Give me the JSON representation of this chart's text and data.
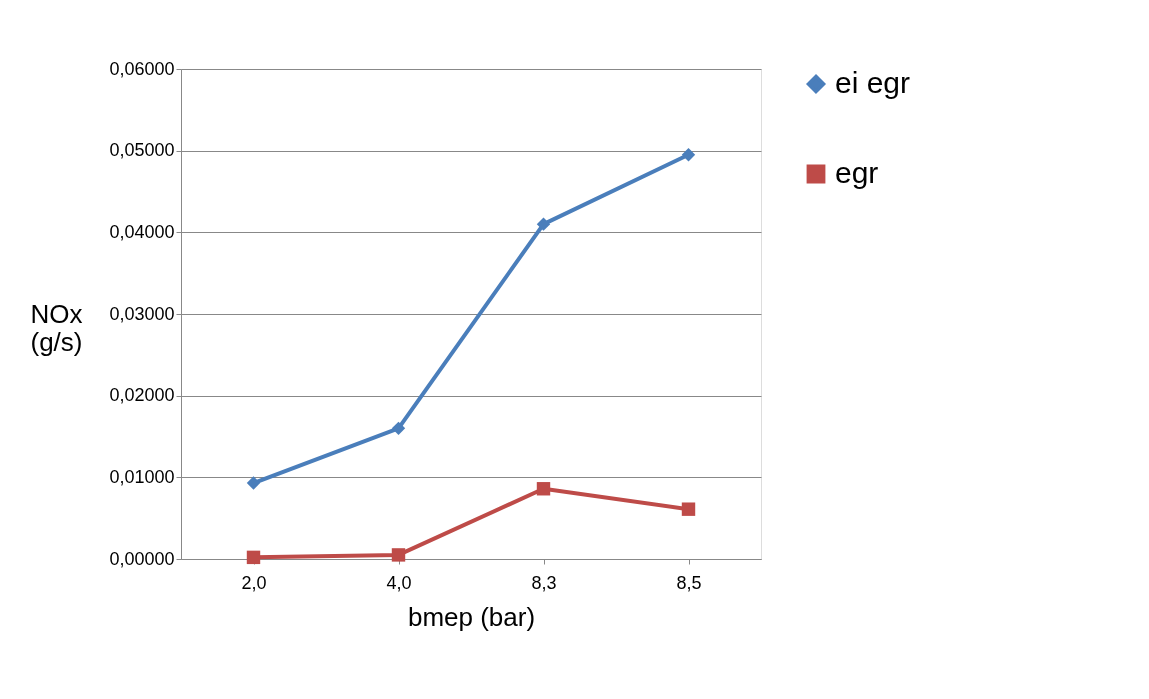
{
  "chart_data": {
    "type": "line",
    "xlabel": "bmep (bar)",
    "ylabel": "NOx (g/s)",
    "categories": [
      "2,0",
      "4,0",
      "8,3",
      "8,5"
    ],
    "series": [
      {
        "name": "ei egr",
        "color": "#4a7ebb",
        "marker": "diamond",
        "values": [
          0.0093,
          0.016,
          0.041,
          0.0495
        ]
      },
      {
        "name": "egr",
        "color": "#be4b48",
        "marker": "square",
        "values": [
          0.0002,
          0.0005,
          0.0086,
          0.0061
        ]
      }
    ],
    "ylim": [
      0,
      0.06
    ],
    "yticks": [
      {
        "value": 0,
        "label": "0,00000"
      },
      {
        "value": 0.01,
        "label": "0,01000"
      },
      {
        "value": 0.02,
        "label": "0,02000"
      },
      {
        "value": 0.03,
        "label": "0,03000"
      },
      {
        "value": 0.04,
        "label": "0,04000"
      },
      {
        "value": 0.05,
        "label": "0,05000"
      },
      {
        "value": 0.06,
        "label": "0,06000"
      }
    ],
    "grid": "y",
    "legend": "right",
    "line_style": "solid"
  }
}
